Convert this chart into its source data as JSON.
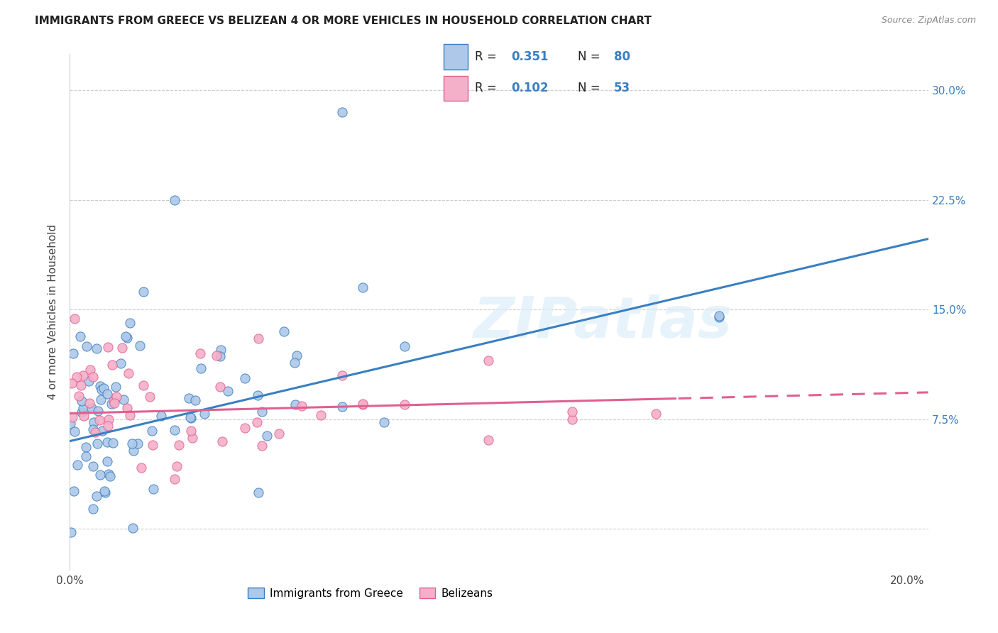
{
  "title": "IMMIGRANTS FROM GREECE VS BELIZEAN 4 OR MORE VEHICLES IN HOUSEHOLD CORRELATION CHART",
  "source": "Source: ZipAtlas.com",
  "ylabel": "4 or more Vehicles in Household",
  "color_greece": "#adc8e8",
  "color_belize": "#f4b0c8",
  "trendline_greece_color": "#3a7fc1",
  "trendline_belize_color": "#e06090",
  "background_color": "#ffffff",
  "watermark_text": "ZIPatlas",
  "legend1_R": "0.351",
  "legend1_N": "80",
  "legend2_R": "0.102",
  "legend2_N": "53",
  "xmin": 0.0,
  "xmax": 0.205,
  "ymin": -0.028,
  "ymax": 0.325,
  "ytick_positions": [
    0.0,
    0.075,
    0.15,
    0.225,
    0.3
  ],
  "ytick_labels": [
    "",
    "7.5%",
    "15.0%",
    "22.5%",
    "30.0%"
  ],
  "xtick_positions": [
    0.0,
    0.04,
    0.08,
    0.12,
    0.16,
    0.2
  ],
  "xtick_labels": [
    "0.0%",
    "",
    "",
    "",
    "",
    "20.0%"
  ]
}
